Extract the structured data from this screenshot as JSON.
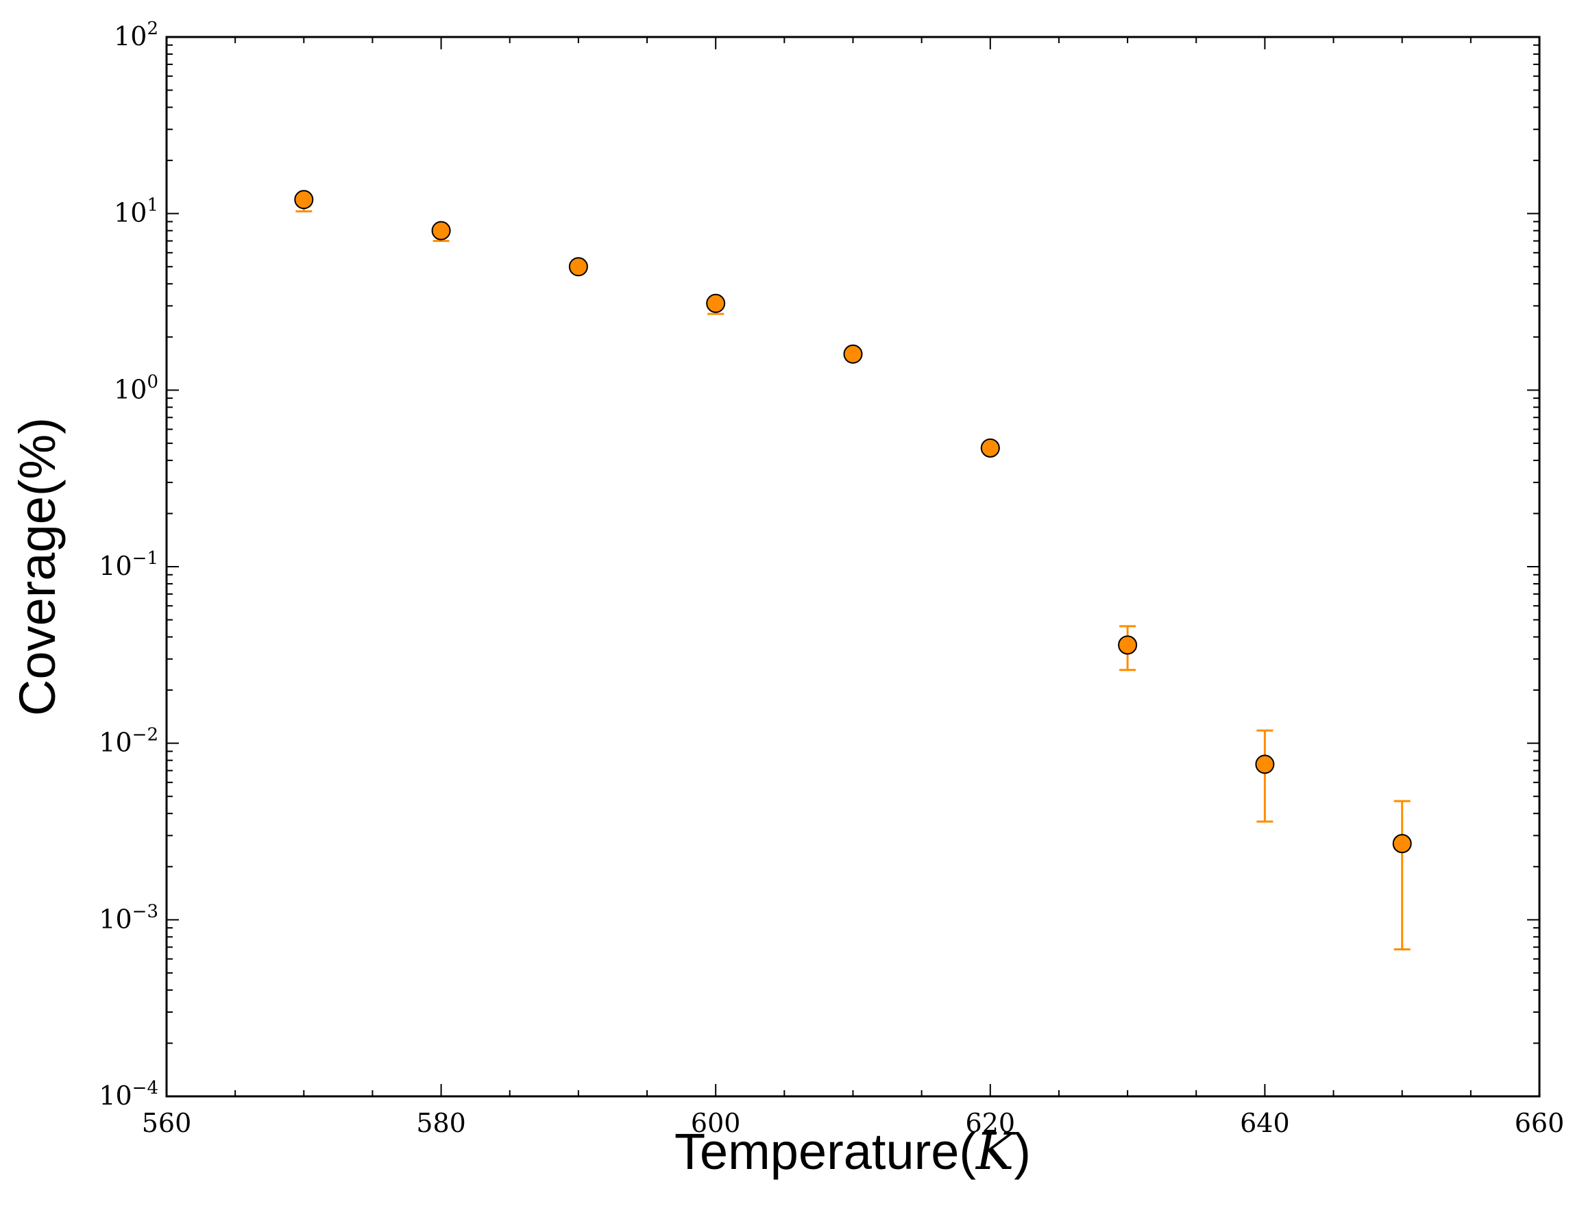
{
  "chart_data": {
    "type": "scatter",
    "xlabel": "Temperature(",
    "xlabel_unit": "K",
    "xlabel_close": ")",
    "ylabel": "Coverage(%)",
    "xlim": [
      560,
      660
    ],
    "ylim": [
      0.0001,
      100
    ],
    "yscale": "log",
    "grid": false,
    "x_ticks": [
      {
        "value": 560,
        "label": "560"
      },
      {
        "value": 580,
        "label": "580"
      },
      {
        "value": 600,
        "label": "600"
      },
      {
        "value": 620,
        "label": "620"
      },
      {
        "value": 640,
        "label": "640"
      },
      {
        "value": 660,
        "label": "660"
      }
    ],
    "y_ticks": [
      {
        "value": 100,
        "base": "10",
        "exp": "2"
      },
      {
        "value": 10,
        "base": "10",
        "exp": "1"
      },
      {
        "value": 1,
        "base": "10",
        "exp": "0"
      },
      {
        "value": 0.1,
        "base": "10",
        "exp": "−1"
      },
      {
        "value": 0.01,
        "base": "10",
        "exp": "−2"
      },
      {
        "value": 0.001,
        "base": "10",
        "exp": "−3"
      },
      {
        "value": 0.0001,
        "base": "10",
        "exp": "−4"
      }
    ],
    "marker_color": "#ff8c00",
    "errorbar_color": "#ff8c00",
    "points": [
      {
        "x": 570,
        "y": 12.0,
        "err_low": 10.3,
        "err_high": 12.5
      },
      {
        "x": 580,
        "y": 8.0,
        "err_low": 7.0,
        "err_high": 8.3
      },
      {
        "x": 590,
        "y": 5.0,
        "err_low": 4.8,
        "err_high": 5.2
      },
      {
        "x": 600,
        "y": 3.1,
        "err_low": 2.7,
        "err_high": 3.2
      },
      {
        "x": 610,
        "y": 1.6,
        "err_low": 1.55,
        "err_high": 1.65
      },
      {
        "x": 620,
        "y": 0.47,
        "err_low": 0.46,
        "err_high": 0.48
      },
      {
        "x": 630,
        "y": 0.036,
        "err_low": 0.026,
        "err_high": 0.046
      },
      {
        "x": 640,
        "y": 0.0076,
        "err_low": 0.0036,
        "err_high": 0.0118
      },
      {
        "x": 650,
        "y": 0.0027,
        "err_low": 0.00068,
        "err_high": 0.0047
      }
    ]
  }
}
